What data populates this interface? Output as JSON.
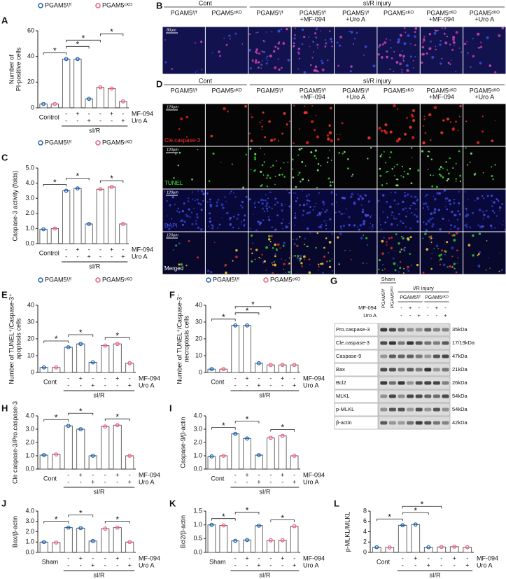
{
  "chart_data": [
    {
      "type": "bar",
      "panel_label": "A",
      "ylabel": [
        "Number of",
        "PI-positive cells"
      ],
      "legend": true,
      "categories": [
        null,
        null,
        null,
        null,
        null,
        null,
        null,
        null
      ],
      "series": [
        {
          "name": "PGAM5ᶠ/ᶠ",
          "color": "#1f5fa8",
          "values": [
            3,
            null,
            38,
            38,
            7,
            null,
            null,
            null
          ]
        },
        {
          "name": "PGAM5ᶜᴷᴼ",
          "color": "#e0607a",
          "values": [
            null,
            3,
            null,
            null,
            null,
            16,
            15,
            5
          ]
        }
      ],
      "ylim": [
        0,
        60
      ],
      "yticks": [
        0,
        20,
        40,
        60
      ],
      "control_label": "Control",
      "injury_label": "sI/R",
      "conditions": [
        {
          "name": "MF-094",
          "marks": [
            null,
            null,
            "-",
            "+",
            "-",
            "-",
            "+",
            "-"
          ]
        },
        {
          "name": "Uro A",
          "marks": [
            null,
            null,
            "-",
            "-",
            "+",
            "-",
            "-",
            "+"
          ]
        }
      ],
      "significance": [
        {
          "text": "*",
          "from": 0,
          "to": 2
        },
        {
          "text": "*",
          "from": 2,
          "to": 4
        },
        {
          "text": "*",
          "from": 2,
          "to": 5
        },
        {
          "text": "*",
          "from": 5,
          "to": 7
        }
      ]
    },
    {
      "type": "bar",
      "panel_label": "C",
      "ylabel": [
        "Caspase-3 activity (folds)"
      ],
      "legend": true,
      "categories": [
        null,
        null,
        null,
        null,
        null,
        null,
        null,
        null
      ],
      "series": [
        {
          "name": "PGAM5ᶠ/ᶠ",
          "color": "#1f5fa8",
          "values": [
            0.95,
            null,
            3.5,
            3.65,
            1.3,
            null,
            null,
            null
          ]
        },
        {
          "name": "PGAM5ᶜᴷᴼ",
          "color": "#e0607a",
          "values": [
            null,
            1.0,
            null,
            null,
            null,
            3.6,
            3.75,
            1.3
          ]
        }
      ],
      "ylim": [
        0,
        5
      ],
      "yticks": [
        {
          "value": 0,
          "label": "0.0"
        },
        {
          "value": 1,
          "label": "1.0"
        },
        {
          "value": 2,
          "label": "2.0"
        },
        {
          "value": 3,
          "label": "3.0"
        },
        {
          "value": 4,
          "label": "4.0"
        },
        {
          "value": 5,
          "label": "5.0"
        }
      ],
      "control_label": "Control",
      "injury_label": "sI/R",
      "conditions": [
        {
          "name": "MF-094",
          "marks": [
            null,
            null,
            "-",
            "+",
            "-",
            "-",
            "+",
            "-"
          ]
        },
        {
          "name": "Uro A",
          "marks": [
            null,
            null,
            "-",
            "-",
            "+",
            "-",
            "-",
            "+"
          ]
        }
      ],
      "significance": [
        {
          "text": "*",
          "from": 0,
          "to": 2
        },
        {
          "text": "*",
          "from": 2,
          "to": 4
        },
        {
          "text": "*",
          "from": 5,
          "to": 7
        }
      ]
    },
    {
      "type": "bar",
      "panel_label": "E",
      "ylabel": [
        "Number of TUNEL⁺/Caspase-3⁺",
        "apoptosis cells"
      ],
      "legend": true,
      "categories": [
        null,
        null,
        null,
        null,
        null,
        null,
        null,
        null
      ],
      "series": [
        {
          "name": "PGAM5ᶠ/ᶠ",
          "color": "#1f5fa8",
          "values": [
            3,
            null,
            15,
            17,
            6,
            null,
            null,
            null
          ]
        },
        {
          "name": "PGAM5ᶜᴷᴼ",
          "color": "#e0607a",
          "values": [
            null,
            3,
            null,
            null,
            null,
            16,
            17,
            5.5
          ]
        }
      ],
      "ylim": [
        0,
        40
      ],
      "yticks": [
        0,
        10,
        20,
        30,
        40
      ],
      "control_label": "Cont",
      "injury_label": "sI/R",
      "conditions": [
        {
          "name": "MF-094",
          "marks": [
            null,
            null,
            "-",
            "+",
            "-",
            "-",
            "+",
            "-"
          ]
        },
        {
          "name": "Uro A",
          "marks": [
            null,
            null,
            "-",
            "-",
            "+",
            "-",
            "-",
            "+"
          ]
        }
      ],
      "significance": [
        {
          "text": "*",
          "from": 0,
          "to": 2
        },
        {
          "text": "*",
          "from": 2,
          "to": 4
        },
        {
          "text": "*",
          "from": 5,
          "to": 7
        }
      ]
    },
    {
      "type": "bar",
      "panel_label": "F",
      "ylabel": [
        "Number of TUNEL⁺/Caspase-3⁻",
        "necroptosis cells"
      ],
      "legend": true,
      "categories": [
        null,
        null,
        null,
        null,
        null,
        null,
        null,
        null
      ],
      "series": [
        {
          "name": "PGAM5ᶠ/ᶠ",
          "color": "#1f5fa8",
          "values": [
            2,
            null,
            28,
            28,
            5.5,
            null,
            null,
            null
          ]
        },
        {
          "name": "PGAM5ᶜᴷᴼ",
          "color": "#e0607a",
          "values": [
            null,
            2,
            null,
            null,
            null,
            4.5,
            4.5,
            4.5
          ]
        }
      ],
      "ylim": [
        0,
        40
      ],
      "yticks": [
        0,
        10,
        20,
        30,
        40
      ],
      "control_label": "Cont",
      "injury_label": "sI/R",
      "conditions": [
        {
          "name": "MF-094",
          "marks": [
            null,
            null,
            "-",
            "+",
            "-",
            "-",
            "+",
            "-"
          ]
        },
        {
          "name": "Uro A",
          "marks": [
            null,
            null,
            "-",
            "-",
            "+",
            "-",
            "-",
            "+"
          ]
        }
      ],
      "significance": [
        {
          "text": "*",
          "from": 0,
          "to": 2
        },
        {
          "text": "*",
          "from": 2,
          "to": 4
        },
        {
          "text": "*",
          "from": 2,
          "to": 5
        }
      ]
    },
    {
      "type": "bar",
      "panel_label": "H",
      "ylabel": [
        "Cle caspase-3/Pro.caspase-3"
      ],
      "legend": false,
      "categories": [
        null,
        null,
        null,
        null,
        null,
        null,
        null,
        null
      ],
      "series": [
        {
          "name": "PGAM5ᶠ/ᶠ",
          "color": "#1f5fa8",
          "values": [
            1.05,
            null,
            3.25,
            3.0,
            1.0,
            null,
            null,
            null
          ]
        },
        {
          "name": "PGAM5ᶜᴷᴼ",
          "color": "#e0607a",
          "values": [
            null,
            1.1,
            null,
            null,
            null,
            3.2,
            3.3,
            1.0
          ]
        }
      ],
      "ylim": [
        0,
        4
      ],
      "yticks": [
        {
          "value": 0,
          "label": "0.0"
        },
        {
          "value": 1,
          "label": "1.0"
        },
        {
          "value": 2,
          "label": "2.0"
        },
        {
          "value": 3,
          "label": "3.0"
        },
        {
          "value": 4,
          "label": "4.0"
        }
      ],
      "control_label": "Cont",
      "injury_label": "sI/R",
      "conditions": [
        {
          "name": "MF-094",
          "marks": [
            null,
            null,
            "-",
            "+",
            "-",
            "-",
            "+",
            "-"
          ]
        },
        {
          "name": "Uro A",
          "marks": [
            null,
            null,
            "-",
            "-",
            "+",
            "-",
            "-",
            "+"
          ]
        }
      ],
      "significance": [
        {
          "text": "*",
          "from": 0,
          "to": 2
        },
        {
          "text": "*",
          "from": 2,
          "to": 4
        },
        {
          "text": "*",
          "from": 5,
          "to": 7
        }
      ]
    },
    {
      "type": "bar",
      "panel_label": "I",
      "ylabel": [
        "Caspase-9/β-actin"
      ],
      "legend": false,
      "categories": [
        null,
        null,
        null,
        null,
        null,
        null,
        null,
        null
      ],
      "series": [
        {
          "name": "PGAM5ᶠ/ᶠ",
          "color": "#1f5fa8",
          "values": [
            0.95,
            null,
            2.65,
            2.3,
            1.05,
            null,
            null,
            null
          ]
        },
        {
          "name": "PGAM5ᶜᴷᴼ",
          "color": "#e0607a",
          "values": [
            null,
            1.0,
            null,
            null,
            null,
            2.35,
            2.5,
            1.0
          ]
        }
      ],
      "ylim": [
        0,
        4
      ],
      "yticks": [
        {
          "value": 0,
          "label": "0.0"
        },
        {
          "value": 1,
          "label": "1.0"
        },
        {
          "value": 2,
          "label": "2.0"
        },
        {
          "value": 3,
          "label": "3.0"
        },
        {
          "value": 4,
          "label": "4.0"
        }
      ],
      "control_label": "Cont",
      "injury_label": "sI/R",
      "conditions": [
        {
          "name": "MF-094",
          "marks": [
            null,
            null,
            "-",
            "+",
            "-",
            "-",
            "+",
            "-"
          ]
        },
        {
          "name": "Uro A",
          "marks": [
            null,
            null,
            "-",
            "-",
            "+",
            "-",
            "-",
            "+"
          ]
        }
      ],
      "significance": [
        {
          "text": "*",
          "from": 0,
          "to": 2
        },
        {
          "text": "*",
          "from": 2,
          "to": 4
        },
        {
          "text": "*",
          "from": 5,
          "to": 7
        }
      ]
    },
    {
      "type": "bar",
      "panel_label": "J",
      "ylabel": [
        "Bax/β-actin"
      ],
      "legend": false,
      "categories": [
        null,
        null,
        null,
        null,
        null,
        null,
        null,
        null
      ],
      "series": [
        {
          "name": "PGAM5ᶠ/ᶠ",
          "color": "#1f5fa8",
          "values": [
            1.0,
            null,
            2.4,
            2.35,
            1.1,
            null,
            null,
            null
          ]
        },
        {
          "name": "PGAM5ᶜᴷᴼ",
          "color": "#e0607a",
          "values": [
            null,
            0.95,
            null,
            null,
            null,
            2.3,
            2.4,
            1.0
          ]
        }
      ],
      "ylim": [
        0,
        4
      ],
      "yticks": [
        {
          "value": 0,
          "label": "0.0"
        },
        {
          "value": 1,
          "label": "1.0"
        },
        {
          "value": 2,
          "label": "2.0"
        },
        {
          "value": 3,
          "label": "3.0"
        },
        {
          "value": 4,
          "label": "4.0"
        }
      ],
      "control_label": "Sham",
      "injury_label": "sI/R",
      "conditions": [
        {
          "name": "MF-094",
          "marks": [
            null,
            null,
            "-",
            "+",
            "-",
            "-",
            "+",
            "-"
          ]
        },
        {
          "name": "Uro A",
          "marks": [
            null,
            null,
            "-",
            "-",
            "+",
            "-",
            "-",
            "+"
          ]
        }
      ],
      "significance": [
        {
          "text": "*",
          "from": 0,
          "to": 2
        },
        {
          "text": "*",
          "from": 2,
          "to": 4
        },
        {
          "text": "*",
          "from": 5,
          "to": 7
        }
      ]
    },
    {
      "type": "bar",
      "panel_label": "K",
      "ylabel": [
        "Bcl2/β-actin"
      ],
      "legend": false,
      "categories": [
        null,
        null,
        null,
        null,
        null,
        null,
        null,
        null
      ],
      "series": [
        {
          "name": "PGAM5ᶠ/ᶠ",
          "color": "#1f5fa8",
          "values": [
            1.0,
            null,
            0.42,
            0.45,
            0.97,
            null,
            null,
            null
          ]
        },
        {
          "name": "PGAM5ᶜᴷᴼ",
          "color": "#e0607a",
          "values": [
            null,
            0.98,
            null,
            null,
            null,
            0.44,
            0.44,
            0.95
          ]
        }
      ],
      "ylim": [
        0,
        1.5
      ],
      "yticks": [
        {
          "value": 0,
          "label": "0.0"
        },
        0.5,
        {
          "value": 1,
          "label": "1.0"
        },
        1.5
      ],
      "control_label": "Sham",
      "injury_label": "sI/R",
      "conditions": [
        {
          "name": "MF-094",
          "marks": [
            null,
            null,
            "-",
            "+",
            "-",
            "-",
            "+",
            "-"
          ]
        },
        {
          "name": "Uro A",
          "marks": [
            null,
            null,
            "-",
            "-",
            "+",
            "-",
            "-",
            "+"
          ]
        }
      ],
      "significance": [
        {
          "text": "*",
          "from": 0,
          "to": 2
        },
        {
          "text": "*",
          "from": 2,
          "to": 4
        },
        {
          "text": "*",
          "from": 5,
          "to": 7
        }
      ]
    },
    {
      "type": "bar",
      "panel_label": "L",
      "ylabel": [
        "p-MLKL/MLKL"
      ],
      "legend": false,
      "categories": [
        null,
        null,
        null,
        null,
        null,
        null,
        null,
        null
      ],
      "series": [
        {
          "name": "PGAM5ᶠ/ᶠ",
          "color": "#1f5fa8",
          "values": [
            1.0,
            null,
            5.25,
            5.4,
            1.0,
            null,
            null,
            null
          ]
        },
        {
          "name": "PGAM5ᶜᴷᴼ",
          "color": "#e0607a",
          "values": [
            null,
            0.95,
            null,
            null,
            null,
            1.05,
            1.1,
            1.0
          ]
        }
      ],
      "ylim": [
        0,
        8
      ],
      "yticks": [
        0,
        2,
        4,
        6,
        8
      ],
      "control_label": "Cont",
      "injury_label": "sI/R",
      "conditions": [
        {
          "name": "MF-094",
          "marks": [
            null,
            null,
            "-",
            "+",
            "-",
            "-",
            "+",
            "-"
          ]
        },
        {
          "name": "Uro A",
          "marks": [
            null,
            null,
            "-",
            "-",
            "+",
            "-",
            "-",
            "+"
          ]
        }
      ],
      "significance": [
        {
          "text": "*",
          "from": 0,
          "to": 2
        },
        {
          "text": "*",
          "from": 2,
          "to": 4
        },
        {
          "text": "*",
          "from": 2,
          "to": 5
        }
      ]
    }
  ],
  "panel_B": {
    "label": "B",
    "control_header": "Cont",
    "injury_header": "sI/R injury",
    "columns": [
      [
        "PGAM5ᶠ/ᶠ"
      ],
      [
        "PGAM5ᶜᴷᴼ"
      ],
      [
        "PGAM5ᶠ/ᶠ"
      ],
      [
        "PGAM5ᶠ/ᶠ",
        "+MF-094"
      ],
      [
        "PGAM5ᶠ/ᶠ",
        "+Uro A"
      ],
      [
        "PGAM5ᶜᴷᴼ"
      ],
      [
        "PGAM5ᶜᴷᴼ",
        "+MF-094"
      ],
      [
        "PGAM5ᶜᴷᴼ",
        "+Uro A"
      ]
    ],
    "scale_bar": "80μm"
  },
  "panel_D": {
    "label": "D",
    "control_header": "Cont",
    "injury_header": "sI/R injury",
    "columns": [
      [
        "PGAM5ᶠ/ᶠ"
      ],
      [
        "PGAM5ᶜᴷᴼ"
      ],
      [
        "PGAM5ᶠ/ᶠ"
      ],
      [
        "PGAM5ᶠ/ᶠ",
        "+MF-094"
      ],
      [
        "PGAM5ᶠ/ᶠ",
        "+Uro A"
      ],
      [
        "PGAM5ᶜᴷᴼ"
      ],
      [
        "PGAM5ᶜᴷᴼ",
        "+MF-094"
      ],
      [
        "PGAM5ᶜᴷᴼ",
        "+Uro A"
      ]
    ],
    "rows": [
      "Cle.caspase-3",
      "TUNEL",
      "DAPI",
      "Merged"
    ],
    "scale_bar": "120μm"
  },
  "panel_G": {
    "label": "G",
    "sham_header": "Sham",
    "sham_lanes": [
      "PGAM5ᶠ/ᶠ",
      "PGAM5ᶜᴷᴼ"
    ],
    "injury_header": "I/R injury",
    "injury_groups": [
      "PGAM5ᶠ/ᶠ",
      "PGAM5ᶜᴷᴼ"
    ],
    "conditions": [
      {
        "name": "MF-094",
        "marks": [
          null,
          null,
          "-",
          "+",
          "-",
          "-",
          "+",
          "-"
        ]
      },
      {
        "name": "Uro A",
        "marks": [
          null,
          null,
          "-",
          "-",
          "+",
          "-",
          "-",
          "+"
        ]
      }
    ],
    "blots": [
      {
        "protein": "Pro.caspase-3",
        "size": "35kDa"
      },
      {
        "protein": "Cle.caspase-3",
        "size": "17/19kDa"
      },
      {
        "protein": "Caspase-9",
        "size": "47kDa"
      },
      {
        "protein": "Bax",
        "size": "21kDa"
      },
      {
        "protein": "Bcl2",
        "size": "26kDa"
      },
      {
        "protein": "MLKL",
        "size": "54kDa"
      },
      {
        "protein": "p-MLKL",
        "size": "54kDa"
      },
      {
        "protein": "β-actin",
        "size": "42kDa"
      }
    ]
  }
}
